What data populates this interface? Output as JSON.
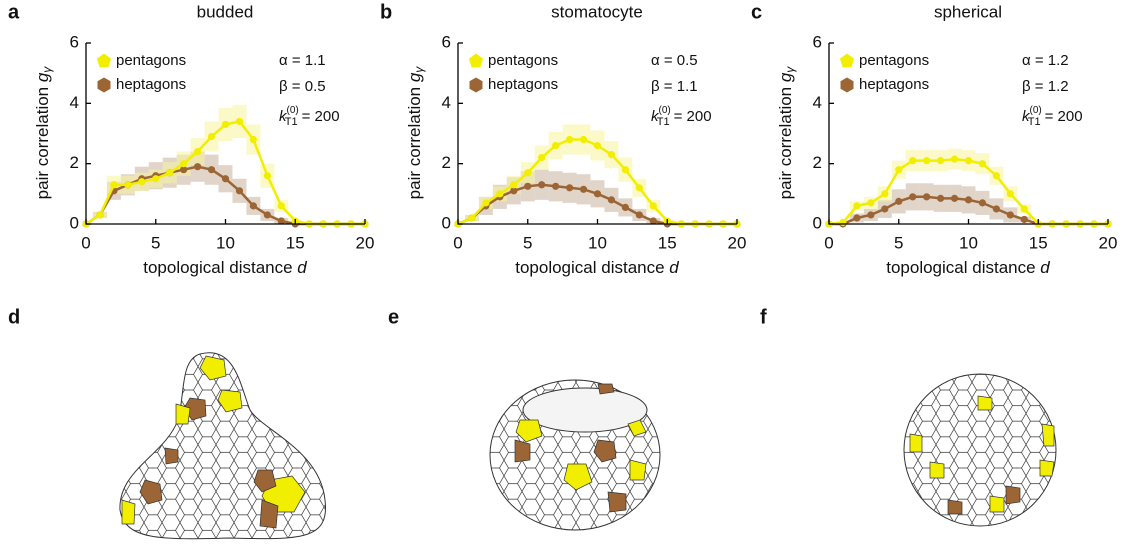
{
  "chart_data": [
    {
      "type": "line",
      "panel": "a",
      "title": "budded",
      "xlabel": "topological distance ",
      "xlabel_symbol": "d",
      "ylabel": "pair correlation ",
      "ylabel_symbol": "g",
      "ylabel_sub": "γ",
      "annotations": [
        "α = 1.1",
        "β = 0.5"
      ],
      "k_symbol": "k",
      "k_sub": "T1",
      "k_sup": "(0)",
      "k_value": "= 200",
      "xlim": [
        0,
        20
      ],
      "xticks": [
        0,
        5,
        10,
        15,
        20
      ],
      "ylim": [
        0,
        6
      ],
      "yticks": [
        0,
        2,
        4,
        6
      ],
      "x": [
        0,
        1,
        2,
        3,
        4,
        5,
        6,
        7,
        8,
        9,
        10,
        11,
        12,
        13,
        14,
        15,
        16,
        17,
        18,
        19,
        20
      ],
      "series": [
        {
          "name": "heptagons",
          "color": "#9c6535",
          "band_color": "#c9b39c",
          "values": [
            0,
            0.3,
            1.1,
            1.3,
            1.5,
            1.6,
            1.7,
            1.8,
            1.9,
            1.8,
            1.5,
            1.1,
            0.6,
            0.3,
            0.1,
            0,
            0,
            0,
            0,
            0,
            0
          ],
          "errors": [
            0,
            0.1,
            0.3,
            0.35,
            0.4,
            0.45,
            0.5,
            0.5,
            0.5,
            0.5,
            0.45,
            0.4,
            0.3,
            0.2,
            0.1,
            0,
            0,
            0,
            0,
            0,
            0
          ]
        },
        {
          "name": "pentagons",
          "color": "#f2ee00",
          "band_color": "#f7f49a",
          "values": [
            0,
            0.3,
            1.3,
            1.3,
            1.4,
            1.5,
            1.7,
            2.0,
            2.4,
            2.9,
            3.3,
            3.4,
            2.8,
            1.6,
            0.6,
            0.1,
            0,
            0,
            0,
            0,
            0
          ],
          "errors": [
            0,
            0.1,
            0.3,
            0.3,
            0.3,
            0.3,
            0.35,
            0.4,
            0.45,
            0.5,
            0.55,
            0.55,
            0.5,
            0.4,
            0.2,
            0.05,
            0,
            0,
            0,
            0,
            0
          ]
        }
      ]
    },
    {
      "type": "line",
      "panel": "b",
      "title": "stomatocyte",
      "xlabel": "topological distance ",
      "xlabel_symbol": "d",
      "ylabel": "pair correlation ",
      "ylabel_symbol": "g",
      "ylabel_sub": "γ",
      "annotations": [
        "α = 0.5",
        "β = 1.1"
      ],
      "k_symbol": "k",
      "k_sub": "T1",
      "k_sup": "(0)",
      "k_value": "= 200",
      "xlim": [
        0,
        20
      ],
      "xticks": [
        0,
        5,
        10,
        15,
        20
      ],
      "ylim": [
        0,
        6
      ],
      "yticks": [
        0,
        2,
        4,
        6
      ],
      "x": [
        0,
        1,
        2,
        3,
        4,
        5,
        6,
        7,
        8,
        9,
        10,
        11,
        12,
        13,
        14,
        15,
        16,
        17,
        18,
        19,
        20
      ],
      "series": [
        {
          "name": "heptagons",
          "color": "#9c6535",
          "band_color": "#c9b39c",
          "values": [
            0,
            0.2,
            0.6,
            0.9,
            1.1,
            1.25,
            1.3,
            1.25,
            1.2,
            1.15,
            1.0,
            0.8,
            0.55,
            0.3,
            0.1,
            0,
            0,
            0,
            0,
            0,
            0
          ],
          "errors": [
            0,
            0.1,
            0.3,
            0.4,
            0.45,
            0.5,
            0.5,
            0.5,
            0.5,
            0.5,
            0.45,
            0.4,
            0.3,
            0.2,
            0.1,
            0,
            0,
            0,
            0,
            0,
            0
          ]
        },
        {
          "name": "pentagons",
          "color": "#f2ee00",
          "band_color": "#f7f49a",
          "values": [
            0,
            0.2,
            0.7,
            1.0,
            1.3,
            1.7,
            2.2,
            2.6,
            2.8,
            2.8,
            2.6,
            2.3,
            1.8,
            1.2,
            0.6,
            0.1,
            0,
            0,
            0,
            0,
            0
          ],
          "errors": [
            0,
            0.1,
            0.2,
            0.25,
            0.3,
            0.35,
            0.4,
            0.45,
            0.5,
            0.5,
            0.5,
            0.45,
            0.4,
            0.3,
            0.2,
            0.05,
            0,
            0,
            0,
            0,
            0
          ]
        }
      ]
    },
    {
      "type": "line",
      "panel": "c",
      "title": "spherical",
      "xlabel": "topological distance ",
      "xlabel_symbol": "d",
      "ylabel": "pair correlation ",
      "ylabel_symbol": "g",
      "ylabel_sub": "γ",
      "annotations": [
        "α = 1.2",
        "β = 1.2"
      ],
      "k_symbol": "k",
      "k_sub": "T1",
      "k_sup": "(0)",
      "k_value": "= 200",
      "xlim": [
        0,
        20
      ],
      "xticks": [
        0,
        5,
        10,
        15,
        20
      ],
      "ylim": [
        0,
        6
      ],
      "yticks": [
        0,
        2,
        4,
        6
      ],
      "x": [
        0,
        1,
        2,
        3,
        4,
        5,
        6,
        7,
        8,
        9,
        10,
        11,
        12,
        13,
        14,
        15,
        16,
        17,
        18,
        19,
        20
      ],
      "series": [
        {
          "name": "heptagons",
          "color": "#9c6535",
          "band_color": "#c9b39c",
          "values": [
            0,
            0,
            0.2,
            0.3,
            0.5,
            0.75,
            0.9,
            0.9,
            0.85,
            0.85,
            0.8,
            0.7,
            0.5,
            0.3,
            0.15,
            0,
            0,
            0,
            0,
            0,
            0
          ],
          "errors": [
            0,
            0,
            0.15,
            0.2,
            0.3,
            0.4,
            0.45,
            0.45,
            0.45,
            0.45,
            0.45,
            0.4,
            0.35,
            0.25,
            0.1,
            0,
            0,
            0,
            0,
            0,
            0
          ]
        },
        {
          "name": "pentagons",
          "color": "#f2ee00",
          "band_color": "#f7f49a",
          "values": [
            0,
            0.05,
            0.6,
            0.7,
            1.0,
            1.8,
            2.1,
            2.1,
            2.1,
            2.15,
            2.1,
            2.0,
            1.6,
            1.0,
            0.5,
            0,
            0,
            0,
            0,
            0,
            0
          ],
          "errors": [
            0,
            0.05,
            0.15,
            0.2,
            0.25,
            0.3,
            0.35,
            0.35,
            0.35,
            0.35,
            0.35,
            0.35,
            0.3,
            0.25,
            0.15,
            0,
            0,
            0,
            0,
            0,
            0
          ]
        }
      ]
    }
  ],
  "image_panels": {
    "labels": [
      "d",
      "e",
      "f"
    ]
  }
}
